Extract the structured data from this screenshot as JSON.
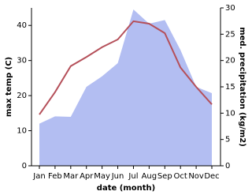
{
  "chart_data": {
    "type": "line",
    "categories": [
      "Jan",
      "Feb",
      "Mar",
      "Apr",
      "May",
      "Jun",
      "Jul",
      "Aug",
      "Sep",
      "Oct",
      "Nov",
      "Dec"
    ],
    "xlabel": "date (month)",
    "ylabel": "max temp (C)",
    "y2label": "med. precipitation (kg/m2)",
    "ylim": [
      0,
      45
    ],
    "yticks": [
      0,
      10,
      20,
      30,
      40
    ],
    "y2lim": [
      0,
      30
    ],
    "y2ticks": [
      0,
      5,
      10,
      15,
      20,
      25,
      30
    ],
    "series": [
      {
        "kind": "area",
        "axis": "y2",
        "color": "#b3bef2",
        "values": [
          8,
          9.4,
          9.3,
          15,
          17,
          19.5,
          29.7,
          27,
          27.7,
          22,
          15,
          13.8
        ]
      },
      {
        "kind": "line",
        "axis": "y",
        "color": "#b5505a",
        "values": [
          14.6,
          21,
          28.4,
          31,
          33.8,
          36,
          41.2,
          40.5,
          37.8,
          28,
          22.5,
          17.5
        ]
      }
    ]
  }
}
